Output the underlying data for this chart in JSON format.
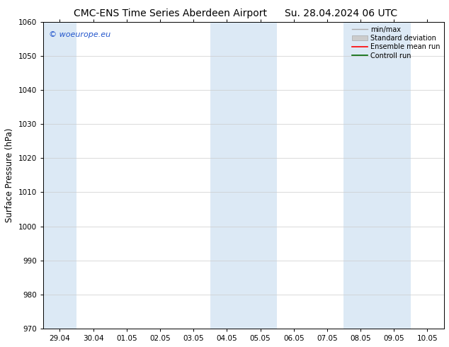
{
  "title_left": "CMC-ENS Time Series Aberdeen Airport",
  "title_right": "Su. 28.04.2024 06 UTC",
  "ylabel": "Surface Pressure (hPa)",
  "ylim": [
    970,
    1060
  ],
  "yticks": [
    970,
    980,
    990,
    1000,
    1010,
    1020,
    1030,
    1040,
    1050,
    1060
  ],
  "xtick_labels": [
    "29.04",
    "30.04",
    "01.05",
    "02.05",
    "03.05",
    "04.05",
    "05.05",
    "06.05",
    "07.05",
    "08.05",
    "09.05",
    "10.05"
  ],
  "bg_color": "#ffffff",
  "plot_bg_color": "#ffffff",
  "shaded_color": "#dce9f5",
  "watermark_text": "© woeurope.eu",
  "watermark_color": "#2255cc",
  "grid_color": "#cccccc",
  "tick_label_fontsize": 7.5,
  "title_fontsize": 10,
  "axis_label_fontsize": 8.5,
  "legend_fontsize": 7
}
